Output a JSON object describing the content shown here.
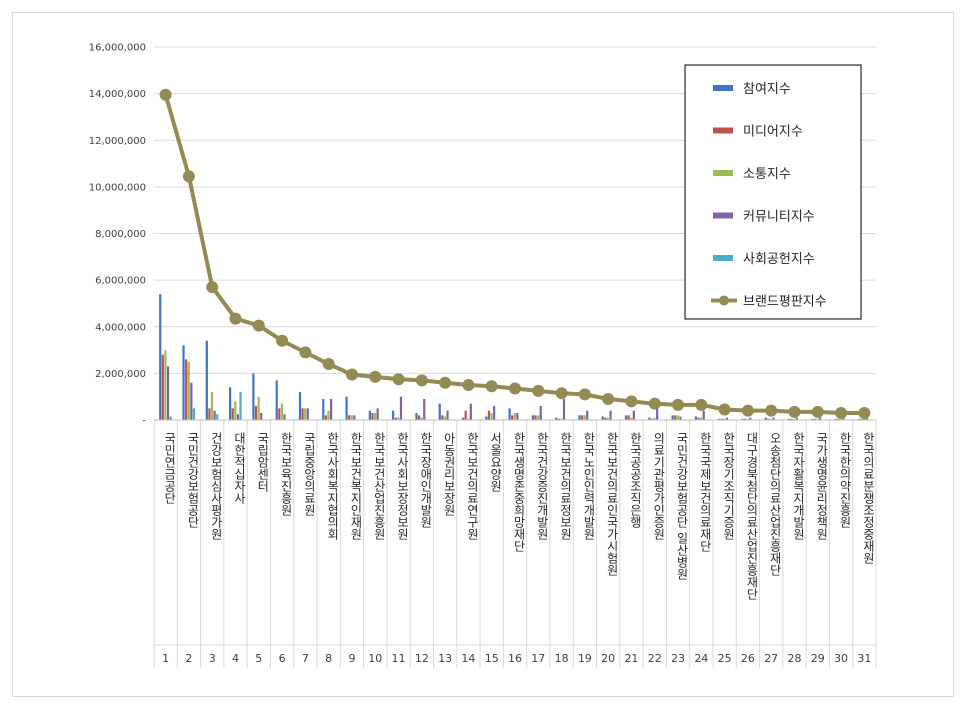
{
  "chart_data": {
    "type": "bar",
    "title": "",
    "xlabel": "",
    "ylabel": "",
    "ylim": [
      0,
      16000000
    ],
    "y_ticks": [
      "-",
      "2,000,000",
      "4,000,000",
      "6,000,000",
      "8,000,000",
      "10,000,000",
      "12,000,000",
      "14,000,000",
      "16,000,000"
    ],
    "grid": true,
    "legend_position": "top-right",
    "ranks": [
      "1",
      "2",
      "3",
      "4",
      "5",
      "6",
      "7",
      "8",
      "9",
      "10",
      "11",
      "12",
      "13",
      "14",
      "15",
      "16",
      "17",
      "18",
      "19",
      "20",
      "21",
      "22",
      "23",
      "24",
      "25",
      "26",
      "27",
      "28",
      "29",
      "30",
      "31"
    ],
    "categories": [
      "국민연금공단",
      "국민건강보험공단",
      "건강보험심사평가원",
      "대한적십자사",
      "국립암센터",
      "한국보육진흥원",
      "국립중앙의료원",
      "한국사회복지협의회",
      "한국보건복지인재원",
      "한국보건산업진흥원",
      "한국사회보장정보원",
      "한국장애인개발원",
      "아동권리보장원",
      "한국보건의료연구원",
      "서울요양원",
      "한국생명존중희망재단",
      "한국건강증진개발원",
      "한국보건의료정보원",
      "한국노인인력개발원",
      "한국보건의료인국가시험원",
      "한국공공조직은행",
      "의료기관평가인증원",
      "국민건강보험공단 일산병원",
      "한국국제보건의료재단",
      "한국장기조직기증원",
      "대구경북첨단의료산업진흥재단",
      "오송첨단의료산업진흥재단",
      "한국자활복지개발원",
      "국가생명윤리정책원",
      "한국한의약진흥원",
      "한국의료분쟁조정중재원"
    ],
    "series": [
      {
        "name": "참여지수",
        "type": "bar",
        "color": "#4472c4",
        "values": [
          5400000,
          3200000,
          3400000,
          1400000,
          2000000,
          1700000,
          1200000,
          900000,
          1000000,
          400000,
          400000,
          300000,
          700000,
          100000,
          150000,
          500000,
          200000,
          100000,
          200000,
          150000,
          200000,
          100000,
          200000,
          150000,
          50000,
          50000,
          100000,
          50000,
          50000,
          50000,
          50000
        ]
      },
      {
        "name": "미디어지수",
        "type": "bar",
        "color": "#c0504d",
        "values": [
          2800000,
          2600000,
          500000,
          500000,
          600000,
          500000,
          500000,
          200000,
          200000,
          300000,
          100000,
          200000,
          200000,
          400000,
          400000,
          200000,
          200000,
          50000,
          200000,
          100000,
          200000,
          50000,
          200000,
          100000,
          50000,
          50000,
          50000,
          50000,
          50000,
          50000,
          50000
        ]
      },
      {
        "name": "소통지수",
        "type": "bar",
        "color": "#9bbb59",
        "values": [
          3000000,
          2500000,
          1200000,
          800000,
          1000000,
          700000,
          500000,
          400000,
          200000,
          300000,
          100000,
          100000,
          150000,
          50000,
          300000,
          300000,
          200000,
          50000,
          200000,
          100000,
          100000,
          100000,
          200000,
          100000,
          50000,
          50000,
          50000,
          50000,
          50000,
          50000,
          50000
        ]
      },
      {
        "name": "커뮤니티지수",
        "type": "bar",
        "color": "#8064a2",
        "values": [
          2300000,
          1600000,
          400000,
          250000,
          300000,
          250000,
          500000,
          900000,
          200000,
          500000,
          1000000,
          900000,
          400000,
          700000,
          600000,
          300000,
          600000,
          900000,
          400000,
          400000,
          400000,
          500000,
          150000,
          400000,
          100000,
          100000,
          100000,
          100000,
          100000,
          100000,
          100000
        ]
      },
      {
        "name": "사회공헌지수",
        "type": "bar",
        "color": "#4bacc6",
        "values": [
          150000,
          500000,
          250000,
          1200000,
          0,
          0,
          0,
          0,
          0,
          0,
          0,
          0,
          0,
          0,
          0,
          0,
          0,
          0,
          0,
          0,
          0,
          0,
          0,
          0,
          0,
          0,
          0,
          0,
          0,
          0,
          0
        ]
      },
      {
        "name": "브랜드평판지수",
        "type": "line",
        "color": "#948a54",
        "values": [
          13950000,
          10450000,
          5700000,
          4350000,
          4050000,
          3400000,
          2900000,
          2400000,
          1950000,
          1850000,
          1750000,
          1700000,
          1600000,
          1500000,
          1450000,
          1350000,
          1250000,
          1150000,
          1100000,
          900000,
          800000,
          700000,
          650000,
          650000,
          450000,
          400000,
          400000,
          350000,
          350000,
          300000,
          300000
        ]
      }
    ]
  }
}
